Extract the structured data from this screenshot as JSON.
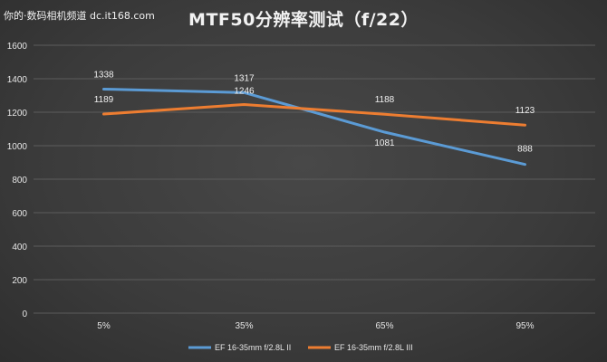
{
  "watermark": "你的·数码相机频道 dc.it168.com",
  "chart_data": {
    "type": "line",
    "title": "MTF50分辨率测试（f/22）",
    "categories": [
      "5%",
      "35%",
      "65%",
      "95%"
    ],
    "series": [
      {
        "name": "EF 16-35mm f/2.8L II",
        "values": [
          1338,
          1317,
          1081,
          888
        ],
        "color": "#5b9bd5"
      },
      {
        "name": "EF 16-35mm f/2.8L III",
        "values": [
          1189,
          1246,
          1188,
          1123
        ],
        "color": "#ed7d31"
      }
    ],
    "ylim": [
      0,
      1600
    ],
    "yticks": [
      0,
      200,
      400,
      600,
      800,
      1000,
      1200,
      1400,
      1600
    ],
    "grid": true,
    "legend_position": "bottom",
    "xlabel": "",
    "ylabel": ""
  }
}
